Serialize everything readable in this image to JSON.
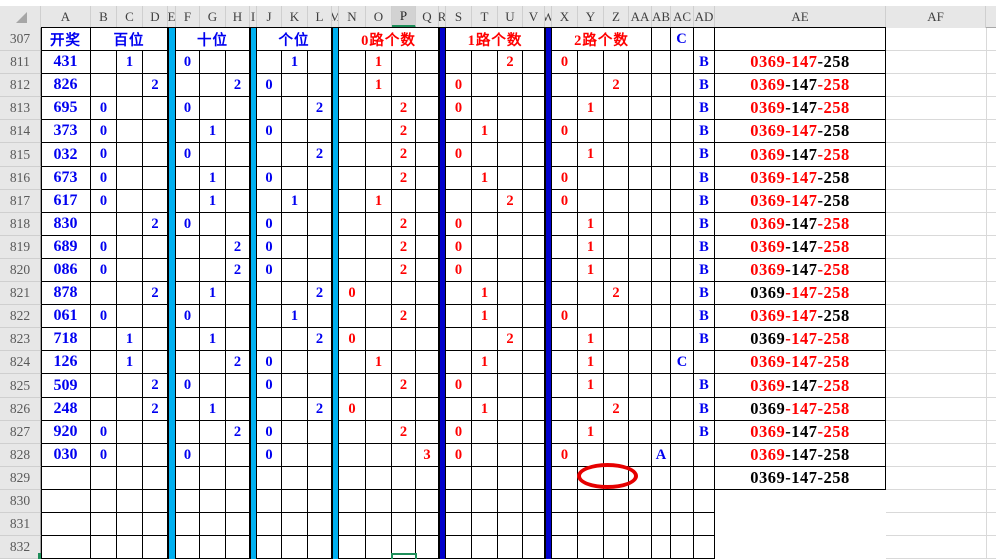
{
  "sheet": {
    "select_all_glyph": "◢",
    "columns": [
      "A",
      "B",
      "C",
      "D",
      "E",
      "F",
      "G",
      "H",
      "I",
      "J",
      "K",
      "L",
      "M",
      "N",
      "O",
      "P",
      "Q",
      "R",
      "S",
      "T",
      "U",
      "V",
      "W",
      "X",
      "Y",
      "Z",
      "AA",
      "AB",
      "AC",
      "AD",
      "AE",
      "AF"
    ],
    "selected_column": "P",
    "separators": {
      "cyan": [
        "E",
        "I",
        "M"
      ],
      "blue": [
        "R",
        "W"
      ]
    },
    "colors": {
      "blue": "#0000f0",
      "red": "#ff0000",
      "black": "#000000",
      "cyan_bar": "#00b0f0",
      "blue_bar": "#0000cb",
      "green_accent": "#1e8e5a",
      "header_bg": "#e7e7e7",
      "selected_header_bg": "#d2d2d2",
      "grid_faint": "#d9d9d9",
      "annotation_red": "#e60000"
    },
    "header_row": {
      "label": "307",
      "cells": [
        {
          "col": "A",
          "span": 1,
          "text": "开奖",
          "color": "blue"
        },
        {
          "col": "B",
          "span": 3,
          "text": "百位",
          "color": "blue"
        },
        {
          "col": "F",
          "span": 3,
          "text": "十位",
          "color": "blue"
        },
        {
          "col": "J",
          "span": 3,
          "text": "个位",
          "color": "blue"
        },
        {
          "col": "N",
          "span": 4,
          "text": "0路个数",
          "color": "red"
        },
        {
          "col": "S",
          "span": 4,
          "text": "1路个数",
          "color": "red"
        },
        {
          "col": "X",
          "span": 4,
          "text": "2路个数",
          "color": "red"
        },
        {
          "col": "AB",
          "span": 1,
          "text": "",
          "color": "black"
        },
        {
          "col": "AC",
          "span": 1,
          "text": "C",
          "color": "blue"
        },
        {
          "col": "AD",
          "span": 1,
          "text": "",
          "color": "black"
        },
        {
          "col": "AE",
          "span": 1,
          "text": "",
          "color": "black"
        }
      ]
    },
    "rows": [
      {
        "n": "811",
        "cells": {
          "A": "431",
          "C": "1",
          "F": "0",
          "K": "1",
          "O": "1",
          "U": "2",
          "X": "0",
          "AD": "B"
        },
        "ae": [
          [
            "0369",
            "red"
          ],
          [
            "-147",
            "red"
          ],
          [
            "-258",
            "black"
          ]
        ]
      },
      {
        "n": "812",
        "cells": {
          "A": "826",
          "D": "2",
          "H": "2",
          "J": "0",
          "O": "1",
          "S": "0",
          "Z": "2",
          "AD": "B"
        },
        "ae": [
          [
            "0369",
            "red"
          ],
          [
            "-147",
            "black"
          ],
          [
            "-258",
            "red"
          ]
        ]
      },
      {
        "n": "813",
        "cells": {
          "A": "695",
          "B": "0",
          "F": "0",
          "L": "2",
          "P": "2",
          "S": "0",
          "Y": "1",
          "AD": "B"
        },
        "ae": [
          [
            "0369",
            "red"
          ],
          [
            "-147",
            "black"
          ],
          [
            "-258",
            "red"
          ]
        ]
      },
      {
        "n": "814",
        "cells": {
          "A": "373",
          "B": "0",
          "G": "1",
          "J": "0",
          "P": "2",
          "T": "1",
          "X": "0",
          "AD": "B"
        },
        "ae": [
          [
            "0369",
            "red"
          ],
          [
            "-147",
            "red"
          ],
          [
            "-258",
            "black"
          ]
        ]
      },
      {
        "n": "815",
        "cells": {
          "A": "032",
          "B": "0",
          "F": "0",
          "L": "2",
          "P": "2",
          "S": "0",
          "Y": "1",
          "AD": "B"
        },
        "ae": [
          [
            "0369",
            "red"
          ],
          [
            "-147",
            "black"
          ],
          [
            "-258",
            "red"
          ]
        ]
      },
      {
        "n": "816",
        "cells": {
          "A": "673",
          "B": "0",
          "G": "1",
          "J": "0",
          "P": "2",
          "T": "1",
          "X": "0",
          "AD": "B"
        },
        "ae": [
          [
            "0369",
            "red"
          ],
          [
            "-147",
            "red"
          ],
          [
            "-258",
            "black"
          ]
        ]
      },
      {
        "n": "817",
        "cells": {
          "A": "617",
          "B": "0",
          "G": "1",
          "K": "1",
          "O": "1",
          "U": "2",
          "X": "0",
          "AD": "B"
        },
        "ae": [
          [
            "0369",
            "red"
          ],
          [
            "-147",
            "red"
          ],
          [
            "-258",
            "black"
          ]
        ]
      },
      {
        "n": "818",
        "cells": {
          "A": "830",
          "D": "2",
          "F": "0",
          "J": "0",
          "P": "2",
          "S": "0",
          "Y": "1",
          "AD": "B"
        },
        "ae": [
          [
            "0369",
            "red"
          ],
          [
            "-147",
            "black"
          ],
          [
            "-258",
            "red"
          ]
        ]
      },
      {
        "n": "819",
        "cells": {
          "A": "689",
          "B": "0",
          "H": "2",
          "J": "0",
          "P": "2",
          "S": "0",
          "Y": "1",
          "AD": "B"
        },
        "ae": [
          [
            "0369",
            "red"
          ],
          [
            "-147",
            "black"
          ],
          [
            "-258",
            "red"
          ]
        ]
      },
      {
        "n": "820",
        "cells": {
          "A": "086",
          "B": "0",
          "H": "2",
          "J": "0",
          "P": "2",
          "S": "0",
          "Y": "1",
          "AD": "B"
        },
        "ae": [
          [
            "0369",
            "red"
          ],
          [
            "-147",
            "black"
          ],
          [
            "-258",
            "red"
          ]
        ]
      },
      {
        "n": "821",
        "cells": {
          "A": "878",
          "D": "2",
          "G": "1",
          "L": "2",
          "N": "0",
          "T": "1",
          "Z": "2",
          "AD": "B"
        },
        "ae": [
          [
            "0369",
            "black"
          ],
          [
            "-147",
            "red"
          ],
          [
            "-258",
            "red"
          ]
        ]
      },
      {
        "n": "822",
        "cells": {
          "A": "061",
          "B": "0",
          "F": "0",
          "K": "1",
          "P": "2",
          "T": "1",
          "X": "0",
          "AD": "B"
        },
        "ae": [
          [
            "0369",
            "red"
          ],
          [
            "-147",
            "red"
          ],
          [
            "-258",
            "black"
          ]
        ]
      },
      {
        "n": "823",
        "cells": {
          "A": "718",
          "C": "1",
          "G": "1",
          "L": "2",
          "N": "0",
          "U": "2",
          "Y": "1",
          "AD": "B"
        },
        "ae": [
          [
            "0369",
            "black"
          ],
          [
            "-147",
            "red"
          ],
          [
            "-258",
            "red"
          ]
        ]
      },
      {
        "n": "824",
        "cells": {
          "A": "126",
          "C": "1",
          "H": "2",
          "J": "0",
          "O": "1",
          "T": "1",
          "Y": "1",
          "AC": "C"
        },
        "ae": [
          [
            "0369",
            "red"
          ],
          [
            "-147",
            "red"
          ],
          [
            "-258",
            "red"
          ]
        ]
      },
      {
        "n": "825",
        "cells": {
          "A": "509",
          "D": "2",
          "F": "0",
          "J": "0",
          "P": "2",
          "S": "0",
          "Y": "1",
          "AD": "B"
        },
        "ae": [
          [
            "0369",
            "red"
          ],
          [
            "-147",
            "black"
          ],
          [
            "-258",
            "red"
          ]
        ]
      },
      {
        "n": "826",
        "cells": {
          "A": "248",
          "D": "2",
          "G": "1",
          "L": "2",
          "N": "0",
          "T": "1",
          "Z": "2",
          "AD": "B"
        },
        "ae": [
          [
            "0369",
            "black"
          ],
          [
            "-147",
            "red"
          ],
          [
            "-258",
            "red"
          ]
        ]
      },
      {
        "n": "827",
        "cells": {
          "A": "920",
          "B": "0",
          "H": "2",
          "J": "0",
          "P": "2",
          "S": "0",
          "Y": "1",
          "AD": "B"
        },
        "ae": [
          [
            "0369",
            "red"
          ],
          [
            "-147",
            "black"
          ],
          [
            "-258",
            "red"
          ]
        ]
      },
      {
        "n": "828",
        "cells": {
          "A": "030",
          "B": "0",
          "F": "0",
          "J": "0",
          "Q": "3",
          "S": "0",
          "X": "0",
          "AB": "A"
        },
        "ae": [
          [
            "0369",
            "red"
          ],
          [
            "-147",
            "black"
          ],
          [
            "-258",
            "black"
          ]
        ]
      },
      {
        "n": "829",
        "cells": {},
        "ae": [
          [
            "0369",
            "black"
          ],
          [
            "-147",
            "black"
          ],
          [
            "-258",
            "black"
          ]
        ]
      },
      {
        "n": "830",
        "cells": {},
        "ae": null
      },
      {
        "n": "831",
        "cells": {},
        "ae": null
      },
      {
        "n": "832",
        "cells": {},
        "ae": null
      }
    ],
    "annotation": {
      "shape": "ellipse",
      "at_row": "829",
      "over_columns": "Y-Z"
    },
    "active_cell_column": "P"
  }
}
